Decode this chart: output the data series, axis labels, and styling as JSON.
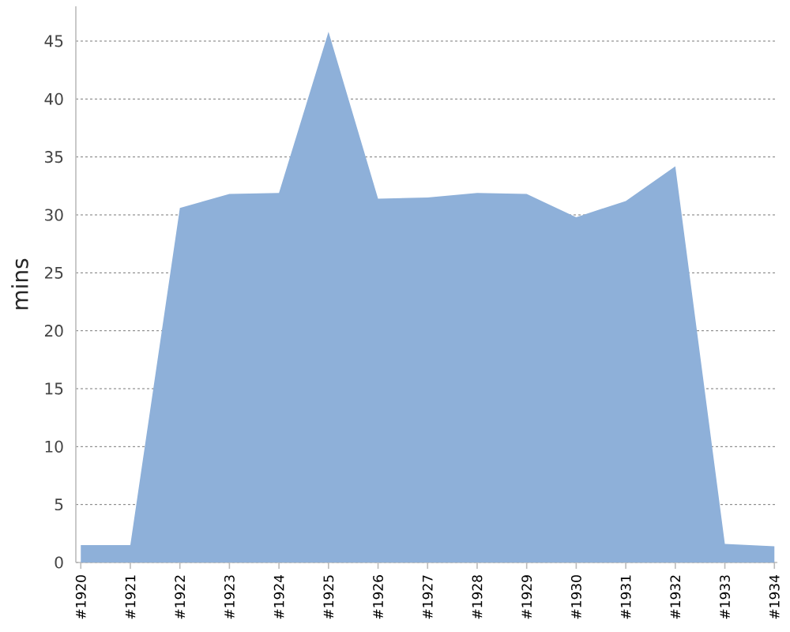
{
  "chart_data": {
    "type": "area",
    "ylabel": "mins",
    "categories": [
      "#1920",
      "#1921",
      "#1922",
      "#1923",
      "#1924",
      "#1925",
      "#1926",
      "#1927",
      "#1928",
      "#1929",
      "#1930",
      "#1931",
      "#1932",
      "#1933",
      "#1934"
    ],
    "values": [
      1.5,
      1.5,
      30.6,
      31.8,
      31.9,
      45.8,
      31.4,
      31.5,
      31.9,
      31.8,
      29.8,
      31.2,
      34.2,
      1.6,
      1.4
    ],
    "color": "#8eb0d9",
    "ylim": [
      0,
      48
    ],
    "yticks": [
      0,
      5,
      10,
      15,
      20,
      25,
      30,
      35,
      40,
      45
    ],
    "grid": "y"
  }
}
